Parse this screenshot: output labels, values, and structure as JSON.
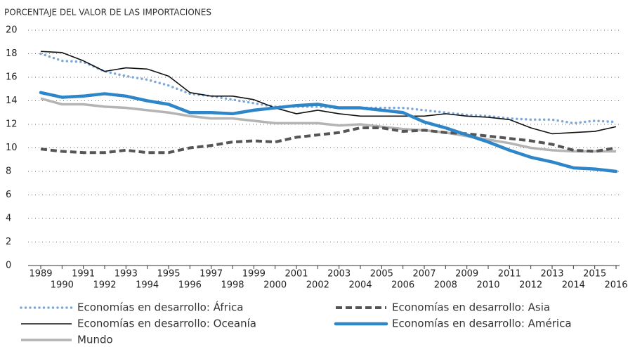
{
  "chart_data": {
    "type": "line",
    "y_axis_label": "PORCENTAJE DEL VALOR DE LAS IMPORTACIONES",
    "x": [
      1989,
      1990,
      1991,
      1992,
      1993,
      1994,
      1995,
      1996,
      1997,
      1998,
      1999,
      2000,
      2001,
      2002,
      2003,
      2004,
      2005,
      2006,
      2007,
      2008,
      2009,
      2010,
      2011,
      2012,
      2013,
      2014,
      2015,
      2016
    ],
    "xlim": [
      1989,
      2016
    ],
    "xticks": [
      1989,
      1990,
      1991,
      1992,
      1993,
      1994,
      1995,
      1996,
      1997,
      1998,
      1999,
      2000,
      2001,
      2002,
      2003,
      2004,
      2005,
      2006,
      2007,
      2008,
      2009,
      2010,
      2011,
      2012,
      2013,
      2014,
      2015,
      2016
    ],
    "ylim": [
      0,
      20
    ],
    "yticks": [
      0,
      2,
      4,
      6,
      8,
      10,
      12,
      14,
      16,
      18,
      20
    ],
    "grid": true,
    "series": [
      {
        "name": "Economías en desarrollo: África",
        "color": "#7ba7da",
        "style": "dotted",
        "values": [
          18.0,
          17.4,
          17.3,
          16.5,
          16.1,
          15.8,
          15.3,
          14.6,
          14.4,
          14.1,
          13.8,
          13.5,
          13.5,
          13.5,
          13.4,
          13.4,
          13.4,
          13.4,
          13.2,
          13.0,
          12.8,
          12.7,
          12.5,
          12.4,
          12.4,
          12.1,
          12.3,
          12.2
        ]
      },
      {
        "name": "Economías en desarrollo: Asia",
        "color": "#555555",
        "style": "dashed",
        "values": [
          9.9,
          9.7,
          9.6,
          9.6,
          9.8,
          9.6,
          9.6,
          10.0,
          10.2,
          10.5,
          10.6,
          10.5,
          10.9,
          11.1,
          11.3,
          11.7,
          11.7,
          11.4,
          11.5,
          11.3,
          11.2,
          11.0,
          10.8,
          10.6,
          10.3,
          9.8,
          9.7,
          10.0
        ]
      },
      {
        "name": "Economías en desarrollo: Oceanía",
        "color": "#111111",
        "style": "solid",
        "values": [
          18.2,
          18.1,
          17.4,
          16.5,
          16.8,
          16.7,
          16.1,
          14.7,
          14.4,
          14.4,
          14.1,
          13.4,
          12.9,
          13.2,
          12.9,
          12.7,
          12.7,
          12.7,
          12.7,
          12.9,
          12.7,
          12.6,
          12.4,
          11.7,
          11.2,
          11.3,
          11.4,
          11.8
        ]
      },
      {
        "name": "Economías en desarrollo: América",
        "color": "#2e86c8",
        "style": "thick",
        "values": [
          14.7,
          14.3,
          14.4,
          14.6,
          14.4,
          14.0,
          13.7,
          13.0,
          13.0,
          12.9,
          13.2,
          13.4,
          13.6,
          13.7,
          13.4,
          13.4,
          13.2,
          13.0,
          12.2,
          11.7,
          11.1,
          10.5,
          9.8,
          9.2,
          8.8,
          8.3,
          8.2,
          8.0
        ]
      },
      {
        "name": "Mundo",
        "color": "#b4b4b4",
        "style": "medium",
        "values": [
          14.2,
          13.7,
          13.7,
          13.5,
          13.4,
          13.2,
          13.0,
          12.7,
          12.5,
          12.5,
          12.3,
          12.1,
          12.1,
          12.1,
          11.9,
          12.0,
          11.8,
          11.6,
          11.5,
          11.3,
          11.0,
          10.7,
          10.4,
          10.0,
          9.8,
          9.7,
          9.7,
          9.7
        ]
      }
    ]
  }
}
